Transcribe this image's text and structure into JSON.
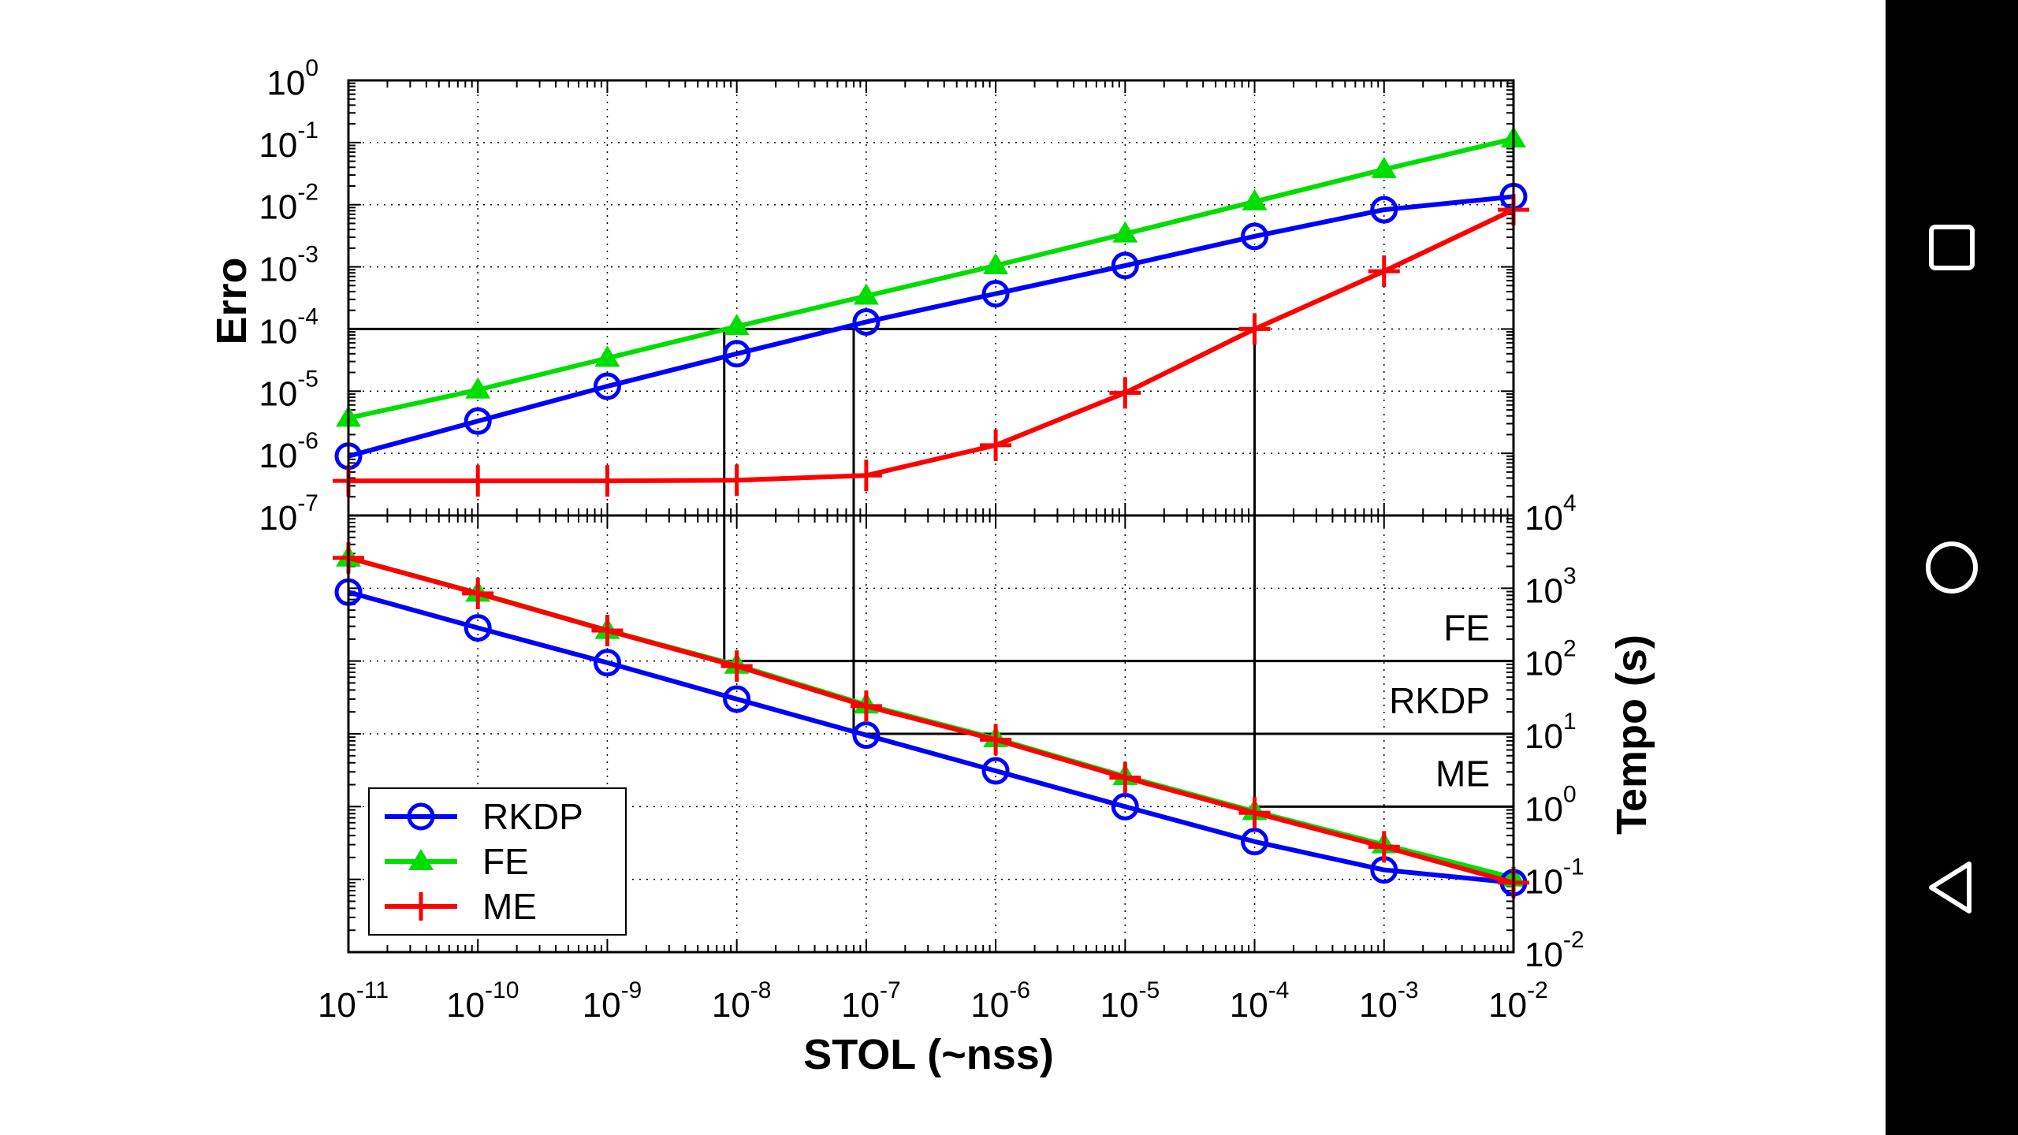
{
  "chart_data": [
    {
      "type": "line",
      "panel": "top",
      "ylabel": "Erro",
      "yscale": "log",
      "ylim": [
        1e-07,
        1
      ],
      "x": [
        1e-11,
        1e-10,
        1e-09,
        1e-08,
        1e-07,
        1e-06,
        1e-05,
        0.0001,
        0.001,
        0.01
      ],
      "series": [
        {
          "name": "RKDP",
          "color": "#0000ff",
          "marker": "circle",
          "values": [
            9e-07,
            3.3e-06,
            1.2e-05,
            4e-05,
            0.00013,
            0.00037,
            0.00105,
            0.0031,
            0.0083,
            0.0135
          ]
        },
        {
          "name": "FE",
          "color": "#00dd00",
          "marker": "triangle",
          "values": [
            3.7e-06,
            1.05e-05,
            3.4e-05,
            0.00011,
            0.00034,
            0.00105,
            0.0034,
            0.0112,
            0.037,
            0.115
          ]
        },
        {
          "name": "ME",
          "color": "#ff0000",
          "marker": "plus",
          "values": [
            3.6e-07,
            3.6e-07,
            3.6e-07,
            3.7e-07,
            4.4e-07,
            1.35e-06,
            9.4e-06,
            0.0001,
            0.00085,
            0.0083
          ]
        }
      ],
      "hline": 0.0001,
      "grid": true
    },
    {
      "type": "line",
      "panel": "bottom",
      "ylabel": "Tempo (s)",
      "xlabel": "STOL (~nss)",
      "yscale": "log",
      "ylim": [
        0.01,
        10000
      ],
      "x": [
        1e-11,
        1e-10,
        1e-09,
        1e-08,
        1e-07,
        1e-06,
        1e-05,
        0.0001,
        0.001,
        0.01
      ],
      "series": [
        {
          "name": "RKDP",
          "color": "#0000ff",
          "marker": "circle",
          "values": [
            885,
            285,
            95,
            30,
            9.6,
            3.1,
            1,
            0.33,
            0.135,
            0.09
          ]
        },
        {
          "name": "FE",
          "color": "#00dd00",
          "marker": "triangle",
          "values": [
            2620,
            860,
            265,
            88,
            25,
            8.6,
            2.6,
            0.86,
            0.3,
            0.105
          ]
        },
        {
          "name": "ME",
          "color": "#ff0000",
          "marker": "plus",
          "values": [
            2620,
            850,
            262,
            85,
            24,
            8.3,
            2.5,
            0.82,
            0.28,
            0.09
          ]
        }
      ],
      "hlines": [
        {
          "label": "FE",
          "value": 100
        },
        {
          "label": "RKDP",
          "value": 10
        },
        {
          "label": "ME",
          "value": 1
        }
      ],
      "vlines": [
        8e-09,
        8e-08,
        0.0001
      ],
      "legend": "bottom-left",
      "grid": true
    }
  ],
  "axes": {
    "x_ticks": [
      {
        "base": "10",
        "exp": "-11"
      },
      {
        "base": "10",
        "exp": "-10"
      },
      {
        "base": "10",
        "exp": "-9"
      },
      {
        "base": "10",
        "exp": "-8"
      },
      {
        "base": "10",
        "exp": "-7"
      },
      {
        "base": "10",
        "exp": "-6"
      },
      {
        "base": "10",
        "exp": "-5"
      },
      {
        "base": "10",
        "exp": "-4"
      },
      {
        "base": "10",
        "exp": "-3"
      },
      {
        "base": "10",
        "exp": "-2"
      }
    ],
    "top_y_ticks": [
      {
        "base": "10",
        "exp": "0"
      },
      {
        "base": "10",
        "exp": "-1"
      },
      {
        "base": "10",
        "exp": "-2"
      },
      {
        "base": "10",
        "exp": "-3"
      },
      {
        "base": "10",
        "exp": "-4"
      },
      {
        "base": "10",
        "exp": "-5"
      },
      {
        "base": "10",
        "exp": "-6"
      },
      {
        "base": "10",
        "exp": "-7"
      }
    ],
    "bottom_y_ticks": [
      {
        "base": "10",
        "exp": "4"
      },
      {
        "base": "10",
        "exp": "3"
      },
      {
        "base": "10",
        "exp": "2"
      },
      {
        "base": "10",
        "exp": "1"
      },
      {
        "base": "10",
        "exp": "0"
      },
      {
        "base": "10",
        "exp": "-1"
      },
      {
        "base": "10",
        "exp": "-2"
      }
    ]
  },
  "legend": {
    "entries": [
      "RKDP",
      "FE",
      "ME"
    ]
  },
  "navbar": {
    "icons": [
      "recent-apps-icon",
      "home-icon",
      "back-icon"
    ]
  }
}
